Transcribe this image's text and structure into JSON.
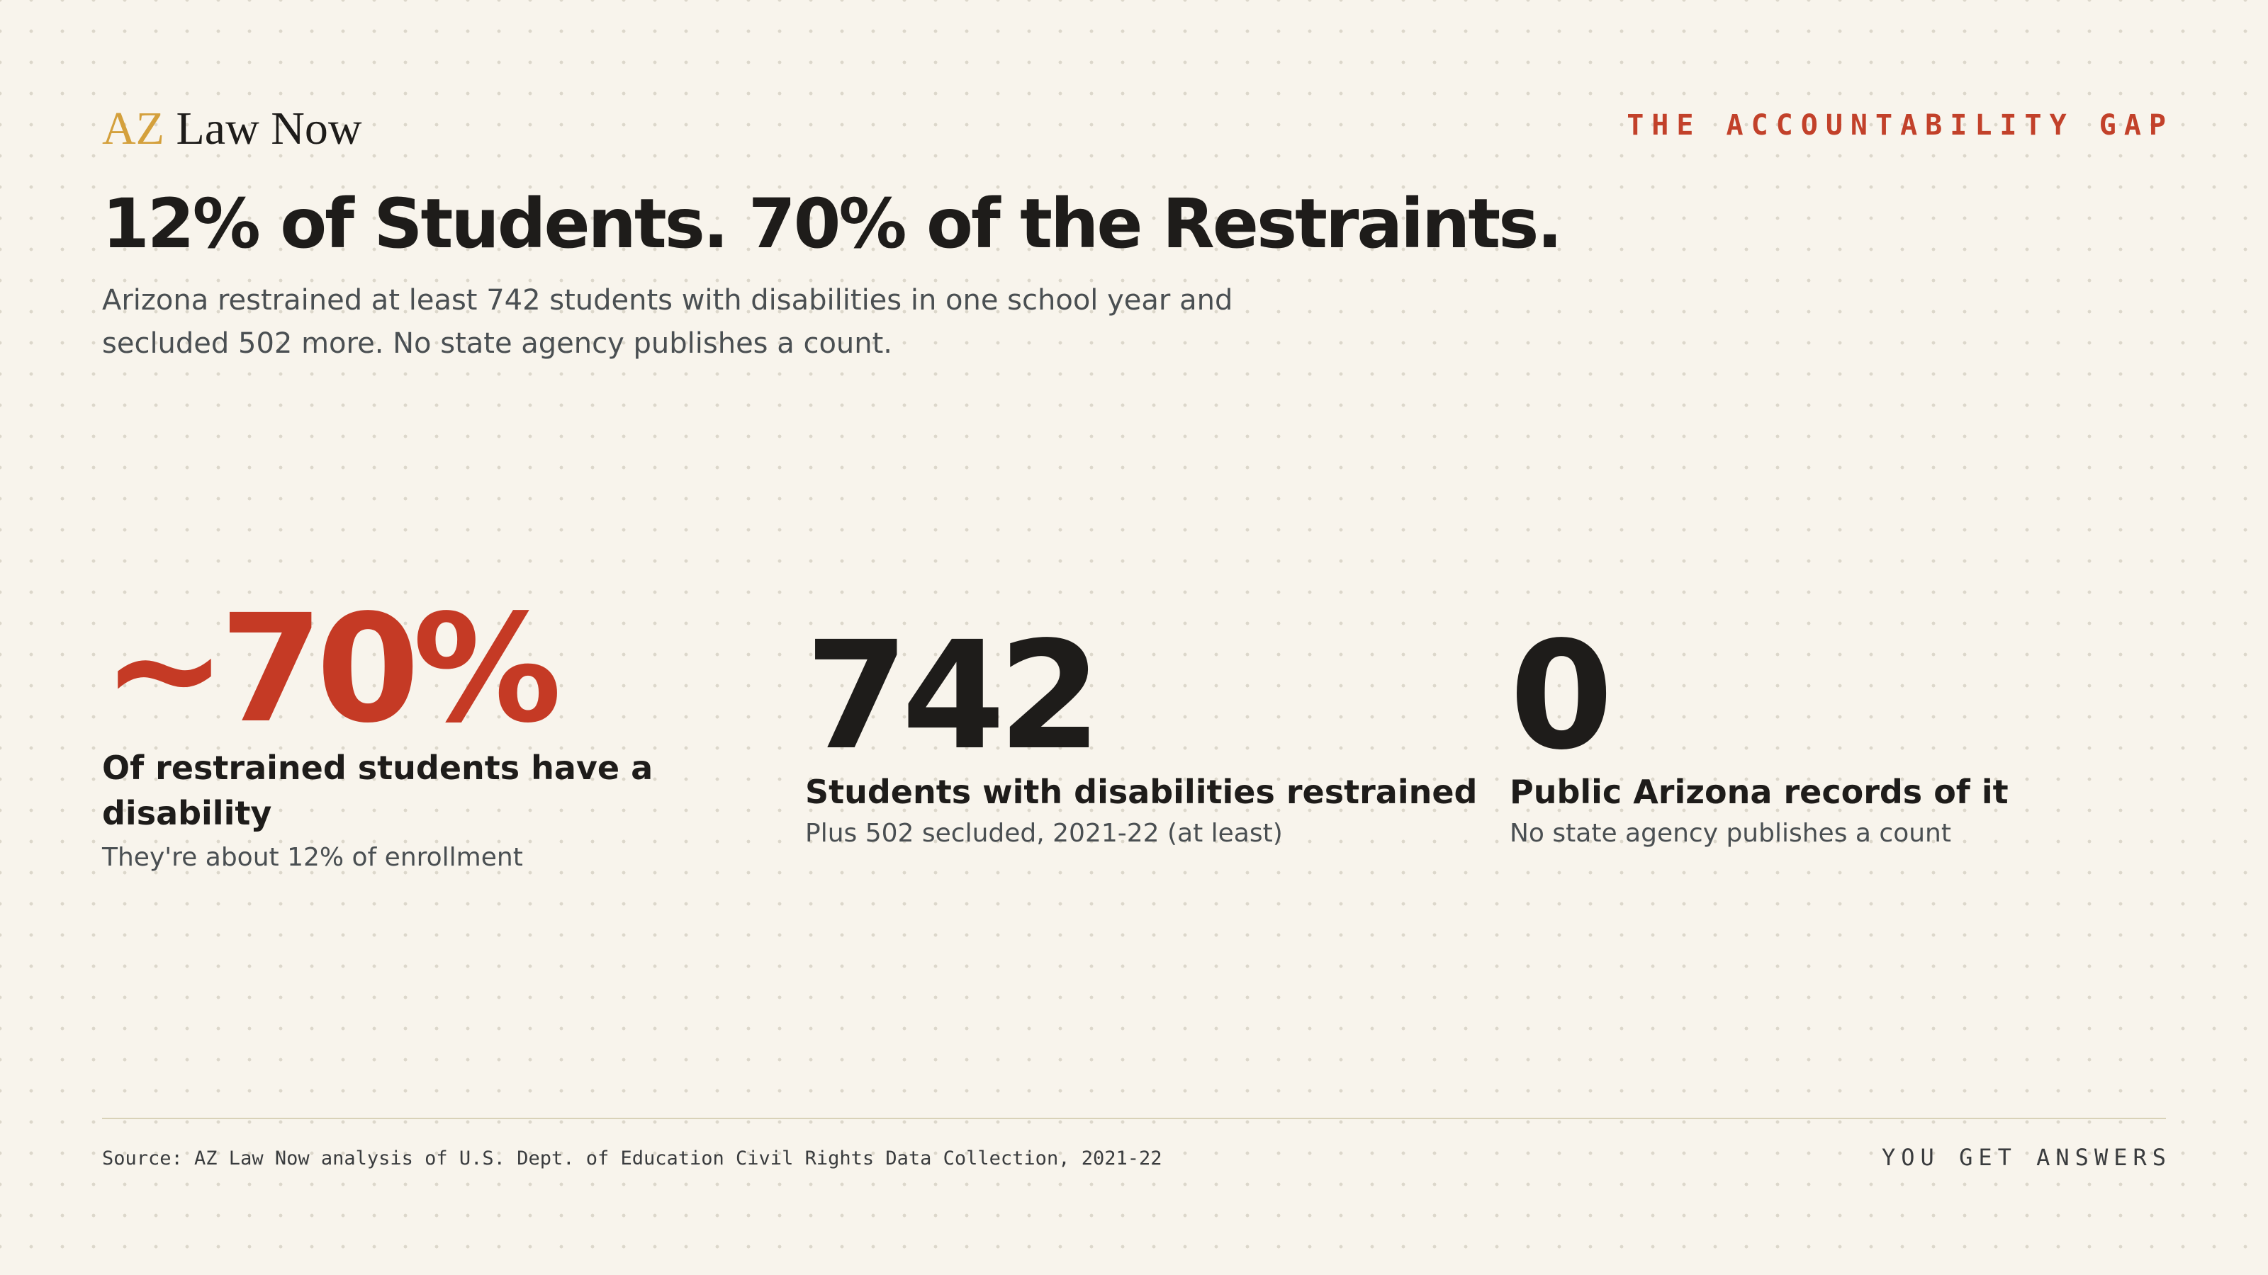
{
  "brand": {
    "prefix": "AZ",
    "name": "Law Now"
  },
  "kicker": "THE ACCOUNTABILITY GAP",
  "headline": "12% of Students. 70% of the Restraints.",
  "subhead": "Arizona restrained at least 742 students with disabilities in one school year and secluded 502 more. No state agency publishes a count.",
  "stats": [
    {
      "value": "~70%",
      "label": "Of restrained students have a disability",
      "note": "They're about 12% of enrollment"
    },
    {
      "value": "742",
      "label": "Students with disabilities restrained",
      "note": "Plus 502 secluded, 2021-22 (at least)"
    },
    {
      "value": "0",
      "label": "Public Arizona records of it",
      "note": "No state agency publishes a count"
    }
  ],
  "footer": {
    "source": "Source: AZ Law Now analysis of U.S. Dept. of Education Civil Rights Data Collection, 2021-22",
    "tagline": "YOU GET ANSWERS"
  },
  "colors": {
    "background": "#f8f4ec",
    "accent": "#c53a25",
    "brand_gold": "#d4a03c",
    "text": "#1e1c1a",
    "muted": "#4a4f52"
  }
}
